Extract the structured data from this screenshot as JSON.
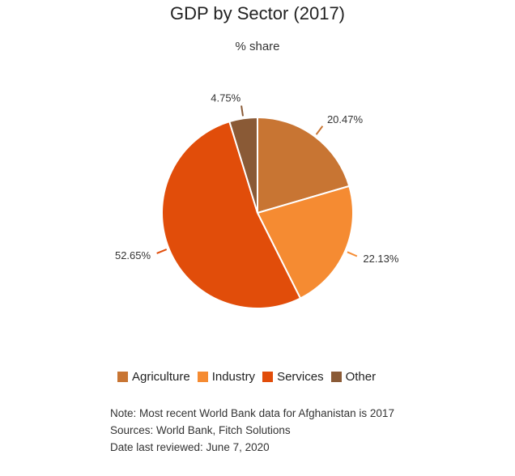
{
  "chart_data": {
    "type": "pie",
    "title": "GDP by Sector (2017)",
    "subtitle": "% share",
    "slices": [
      {
        "label": "Agriculture",
        "value": 20.47,
        "display": "20.47%",
        "color": "#c87533"
      },
      {
        "label": "Industry",
        "value": 22.13,
        "display": "22.13%",
        "color": "#f58b32"
      },
      {
        "label": "Services",
        "value": 52.65,
        "display": "52.65%",
        "color": "#e14d0a"
      },
      {
        "label": "Other",
        "value": 4.75,
        "display": "4.75%",
        "color": "#8a5a36"
      }
    ],
    "legend_position": "bottom",
    "label_color": "#333333",
    "border_color": "#ffffff"
  },
  "notes": [
    "Note: Most recent World Bank data for Afghanistan is 2017",
    "Sources: World Bank, Fitch Solutions",
    "Date last reviewed: June 7, 2020"
  ]
}
